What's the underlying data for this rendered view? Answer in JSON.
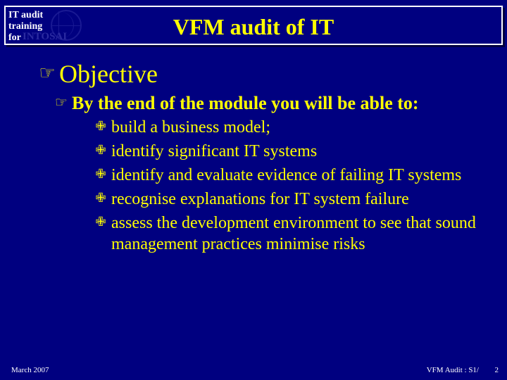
{
  "colors": {
    "background": "#000080",
    "accent": "#ffff00",
    "text_light": "#ffffff",
    "watermark": "#2a2aa0"
  },
  "header": {
    "label_line1": "IT audit",
    "label_line2": "training",
    "label_line3": "for",
    "org": "INTOSAI"
  },
  "title": "VFM audit of IT",
  "bullets": {
    "point_glyph": "☞",
    "cross_glyph": "✙",
    "lvl1": "Objective",
    "lvl2": "By the end of the module you will be able to:",
    "items": [
      "build a business model;",
      "identify significant IT systems",
      "identify and evaluate evidence of failing IT systems",
      "recognise explanations for IT system failure",
      "assess the development environment to see that sound management practices minimise risks"
    ]
  },
  "footer": {
    "left": "March 2007",
    "right": "VFM Audit : S1/",
    "num": "2"
  },
  "typography": {
    "title_fontsize_pt": 32,
    "lvl1_fontsize_pt": 36,
    "lvl2_fontsize_pt": 26,
    "lvl3_fontsize_pt": 24,
    "footer_fontsize_pt": 11,
    "font_family": "Times New Roman"
  }
}
